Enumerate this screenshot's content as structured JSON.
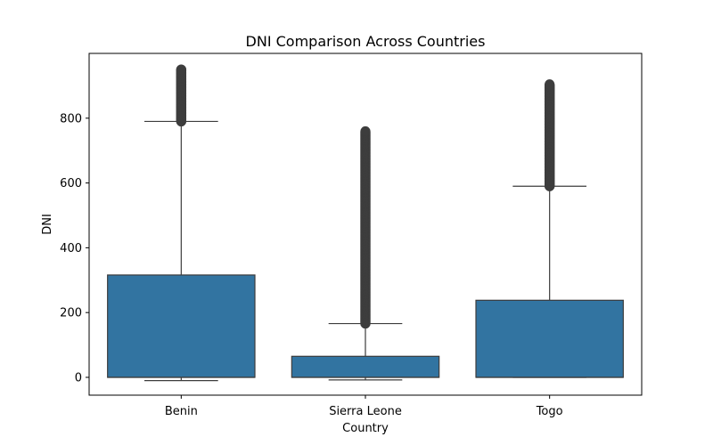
{
  "chart_data": {
    "type": "box",
    "title": "DNI Comparison Across Countries",
    "xlabel": "Country",
    "ylabel": "DNI",
    "categories": [
      "Benin",
      "Sierra Leone",
      "Togo"
    ],
    "ylim": [
      -55,
      1000
    ],
    "yticks": [
      0,
      200,
      400,
      600,
      800
    ],
    "grid": false,
    "box_color": "#3274a1",
    "line_color": "#3d3d3d",
    "boxes": [
      {
        "category": "Benin",
        "whisker_low": -10,
        "q1": 0,
        "median": 0,
        "q3": 316,
        "whisker_high": 790,
        "outlier_min": 790,
        "outlier_max": 950
      },
      {
        "category": "Sierra Leone",
        "whisker_low": -8,
        "q1": 0,
        "median": 0,
        "q3": 65,
        "whisker_high": 166,
        "outlier_min": 166,
        "outlier_max": 760
      },
      {
        "category": "Togo",
        "whisker_low": 0,
        "q1": 0,
        "median": 0,
        "q3": 238,
        "whisker_high": 590,
        "outlier_min": 590,
        "outlier_max": 905
      }
    ]
  }
}
